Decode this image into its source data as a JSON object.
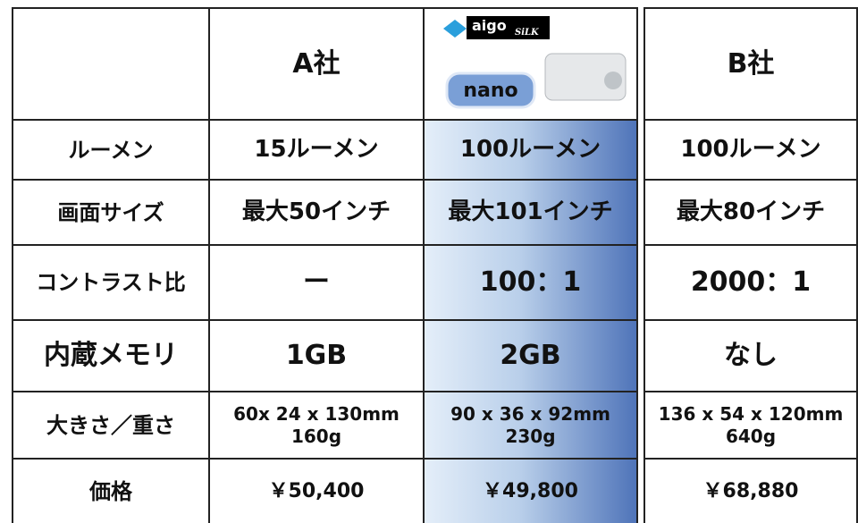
{
  "table": {
    "header": {
      "a": "A社",
      "b": "B社",
      "logo": {
        "brand": "aigo",
        "sub": "SiLK",
        "product": "nano"
      }
    },
    "rows": [
      {
        "label": "ルーメン",
        "cells": [
          [
            "15ルーメン"
          ],
          [
            "100ルーメン"
          ],
          [
            "100ルーメン"
          ]
        ]
      },
      {
        "label": "画面サイズ",
        "cells": [
          [
            "最大50インチ"
          ],
          [
            "最大101インチ"
          ],
          [
            "最大80インチ"
          ]
        ]
      },
      {
        "label": "コントラスト比",
        "cells": [
          [
            "ー"
          ],
          [
            "100：1"
          ],
          [
            "2000：1"
          ]
        ]
      },
      {
        "label": "内蔵メモリ",
        "cells": [
          [
            "1GB"
          ],
          [
            "2GB"
          ],
          [
            "なし"
          ]
        ]
      },
      {
        "label": "大きさ／重さ",
        "cells": [
          [
            "60x 24 x 130mm",
            "160g"
          ],
          [
            "90 x 36 x 92mm",
            "230g"
          ],
          [
            "136 x 54 x 120mm",
            "640g"
          ]
        ]
      },
      {
        "label": "価格",
        "cells": [
          [
            "￥50,400"
          ],
          [
            "￥49,800"
          ],
          [
            "￥68,880"
          ]
        ]
      }
    ]
  }
}
